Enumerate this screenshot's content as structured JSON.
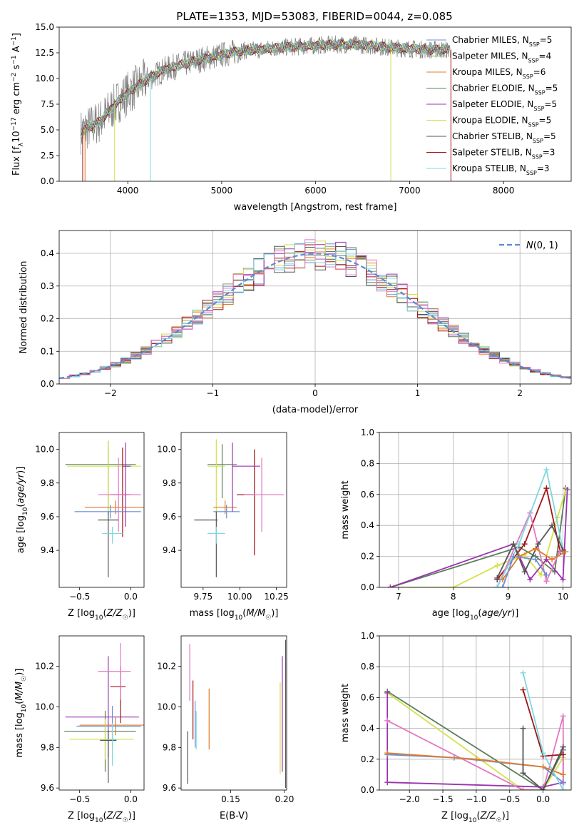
{
  "figure": {
    "title": "PLATE=1353, MJD=53083, FIBERID=0044, z=0.085"
  },
  "colors": {
    "CM": "#6b8fd6",
    "SM": "#8a9a5b",
    "KM": "#e07b2a",
    "CE": "#5a7f5a",
    "SE": "#9b33b0",
    "KE": "#d4e04a",
    "CS": "#555555",
    "SS": "#a31515",
    "KS": "#7dd8dd",
    "pink": "#e377c2",
    "data": "#808080",
    "normal": "#5b8ad6"
  },
  "chart_data": [
    {
      "id": "spectrum",
      "type": "line",
      "xlabel": "wavelength [Angstrom, rest frame]",
      "ylabel": "Flux [f_λ10^-17 erg cm^-2 s^-1 A^-1]",
      "xlim": [
        3270,
        8720
      ],
      "ylim": [
        0,
        15
      ],
      "xticks": [
        "4000",
        "5000",
        "6000",
        "7000",
        "8000"
      ],
      "yticks": [
        "0.0",
        "2.5",
        "5.0",
        "7.5",
        "10.0",
        "12.5",
        "15.0"
      ],
      "model_curve": {
        "x": [
          3500,
          3600,
          3700,
          3800,
          3900,
          4000,
          4200,
          4400,
          4600,
          4800,
          5000,
          5200,
          5400,
          5600,
          5800,
          6000,
          6200,
          6400,
          6600,
          6800,
          7000,
          7200,
          7400
        ],
        "y": [
          4.8,
          5.3,
          5.8,
          6.8,
          7.8,
          8.6,
          9.9,
          10.9,
          11.4,
          11.9,
          12.3,
          12.7,
          12.8,
          13.0,
          13.1,
          13.2,
          13.3,
          13.3,
          13.2,
          13.0,
          12.9,
          12.8,
          12.8
        ]
      },
      "legend": [
        {
          "name": "Chabrier MILES, N_SSP=5",
          "color": "CM"
        },
        {
          "name": "Salpeter MILES, N_SSP=4",
          "color": "SM"
        },
        {
          "name": "Kroupa MILES, N_SSP=6",
          "color": "KM"
        },
        {
          "name": "Chabrier ELODIE, N_SSP=5",
          "color": "CE"
        },
        {
          "name": "Salpeter ELODIE, N_SSP=5",
          "color": "SE"
        },
        {
          "name": "Kroupa ELODIE, N_SSP=5",
          "color": "KE"
        },
        {
          "name": "Chabrier STELIB, N_SSP=5",
          "color": "CS"
        },
        {
          "name": "Salpeter STELIB, N_SSP=3",
          "color": "SS"
        },
        {
          "name": "Kroupa STELIB, N_SSP=3",
          "color": "KS"
        }
      ],
      "legend_placement": "right"
    },
    {
      "id": "residuals",
      "type": "histogram",
      "xlabel": "(data-model)/error",
      "ylabel": "Normed distribution",
      "xlim": [
        -2.5,
        2.5
      ],
      "ylim": [
        0,
        0.47
      ],
      "xticks": [
        "−2",
        "−1",
        "0",
        "1",
        "2"
      ],
      "yticks": [
        "0.0",
        "0.1",
        "0.2",
        "0.3",
        "0.4"
      ],
      "grid": true,
      "bin_edges_start": -2.5,
      "bin_width": 0.1,
      "legend": [
        {
          "name": "N(0,1)",
          "color": "normal"
        }
      ],
      "legend_placement": "top-right"
    },
    {
      "id": "age_vs_Z",
      "type": "errorbar",
      "xlabel": "Z [log10(Z/Z☉)]",
      "ylabel": "age  [log10(age/yr)]",
      "xlim": [
        -0.7,
        0.13
      ],
      "ylim": [
        9.18,
        10.1
      ],
      "xticks": [
        "−0.5",
        "0.0"
      ],
      "yticks": [
        "9.4",
        "9.6",
        "9.8",
        "10.0"
      ],
      "points": [
        {
          "x": -0.22,
          "y": 9.91,
          "ex": [
            0.42,
            0.27
          ],
          "ey": [
            0.3,
            0.14
          ],
          "color": "CE"
        },
        {
          "x": -0.22,
          "y": 9.9,
          "ex": [
            0.4,
            0.32
          ],
          "ey": [
            0.28,
            0.15
          ],
          "color": "KE"
        },
        {
          "x": -0.08,
          "y": 9.73,
          "ex": [
            0.12,
            0.08
          ],
          "ey": [
            0.25,
            0.28
          ],
          "color": "SS"
        },
        {
          "x": -0.12,
          "y": 9.73,
          "ex": [
            0.2,
            0.22
          ],
          "ey": [
            0.22,
            0.22
          ],
          "color": "pink"
        },
        {
          "x": -0.15,
          "y": 9.655,
          "ex": [
            0.3,
            0.28
          ],
          "ey": [
            0.04,
            0.04
          ],
          "color": "KM"
        },
        {
          "x": -0.2,
          "y": 9.63,
          "ex": [
            0.35,
            0.3
          ],
          "ey": [
            0.04,
            0.04
          ],
          "color": "CM"
        },
        {
          "x": -0.22,
          "y": 9.58,
          "ex": [
            0.1,
            0.1
          ],
          "ey": [
            0.34,
            0.05
          ],
          "color": "CS"
        },
        {
          "x": -0.18,
          "y": 9.5,
          "ex": [
            0.1,
            0.1
          ],
          "ey": [
            0.06,
            0.04
          ],
          "color": "KS"
        },
        {
          "x": -0.05,
          "y": 9.9,
          "ex": [
            0.03,
            0.05
          ],
          "ey": [
            0.36,
            0.14
          ],
          "color": "SE"
        }
      ]
    },
    {
      "id": "age_vs_mass",
      "type": "errorbar",
      "xlabel": "mass [log10(M/M☉)]",
      "ylabel": "",
      "xlim": [
        9.6,
        10.32
      ],
      "ylim": [
        9.18,
        10.1
      ],
      "xticks": [
        "9.75",
        "10.00",
        "10.25"
      ],
      "yticks": [
        "9.4",
        "9.6",
        "9.8",
        "10.0"
      ],
      "points": [
        {
          "x": 9.88,
          "y": 9.91,
          "ex": [
            0.1,
            0.1
          ],
          "ey": [
            0.2,
            0.12
          ],
          "color": "CE"
        },
        {
          "x": 9.84,
          "y": 9.9,
          "ex": [
            0.06,
            0.06
          ],
          "ey": [
            0.3,
            0.16
          ],
          "color": "KE"
        },
        {
          "x": 10.1,
          "y": 9.73,
          "ex": [
            0.12,
            0.0
          ],
          "ey": [
            0.36,
            0.27
          ],
          "color": "SS"
        },
        {
          "x": 10.15,
          "y": 9.73,
          "ex": [
            0.12,
            0.15
          ],
          "ey": [
            0.22,
            0.22
          ],
          "color": "pink"
        },
        {
          "x": 9.9,
          "y": 9.655,
          "ex": [
            0.08,
            0.08
          ],
          "ey": [
            0.04,
            0.04
          ],
          "color": "KM"
        },
        {
          "x": 9.91,
          "y": 9.63,
          "ex": [
            0.09,
            0.09
          ],
          "ey": [
            0.04,
            0.04
          ],
          "color": "CM"
        },
        {
          "x": 9.84,
          "y": 9.58,
          "ex": [
            0.15,
            0.01
          ],
          "ey": [
            0.34,
            0.05
          ],
          "color": "CS"
        },
        {
          "x": 9.84,
          "y": 9.5,
          "ex": [
            0.06,
            0.06
          ],
          "ey": [
            0.06,
            0.04
          ],
          "color": "KS"
        },
        {
          "x": 9.95,
          "y": 9.9,
          "ex": [
            0.0,
            0.19
          ],
          "ey": [
            0.27,
            0.14
          ],
          "color": "SE"
        }
      ]
    },
    {
      "id": "massweight_vs_age",
      "type": "line",
      "xlabel": "age  [log10(age/yr)]",
      "ylabel": "mass weight",
      "xlim": [
        6.65,
        10.15
      ],
      "ylim": [
        0,
        1
      ],
      "xticks": [
        "7",
        "8",
        "9",
        "10"
      ],
      "yticks": [
        "0.0",
        "0.2",
        "0.4",
        "0.6",
        "0.8",
        "1.0"
      ],
      "grid": true,
      "series": [
        {
          "color": "CE",
          "x": [
            6.85,
            9.2,
            9.5,
            9.85,
            10.05
          ],
          "y": [
            0.0,
            0.26,
            0.2,
            0.1,
            0.64
          ]
        },
        {
          "color": "KE",
          "x": [
            6.9,
            8.0,
            8.8,
            9.3,
            9.6,
            9.9,
            10.05
          ],
          "y": [
            0.0,
            0.0,
            0.14,
            0.21,
            0.08,
            0.45,
            0.63
          ]
        },
        {
          "color": "SE",
          "x": [
            6.85,
            9.1,
            9.4,
            9.7,
            10.0,
            10.08
          ],
          "y": [
            0.0,
            0.28,
            0.05,
            0.18,
            0.05,
            0.63
          ]
        },
        {
          "color": "SS",
          "x": [
            8.8,
            9.3,
            9.7,
            9.95
          ],
          "y": [
            0.05,
            0.28,
            0.64,
            0.23
          ]
        },
        {
          "color": "pink",
          "x": [
            8.8,
            9.4,
            9.7,
            9.95
          ],
          "y": [
            0.0,
            0.48,
            0.04,
            0.24
          ]
        },
        {
          "color": "KS",
          "x": [
            8.8,
            9.2,
            9.7,
            10.0
          ],
          "y": [
            0.0,
            0.28,
            0.76,
            0.24
          ]
        },
        {
          "color": "CS",
          "x": [
            8.8,
            9.1,
            9.3,
            9.55,
            9.8,
            10.0
          ],
          "y": [
            0.06,
            0.28,
            0.1,
            0.28,
            0.4,
            0.24
          ]
        },
        {
          "color": "KM",
          "x": [
            8.9,
            9.2,
            9.5,
            9.8,
            10.05
          ],
          "y": [
            0.05,
            0.2,
            0.25,
            0.18,
            0.23
          ]
        },
        {
          "color": "CM",
          "x": [
            8.9,
            9.1,
            9.5,
            9.7
          ],
          "y": [
            0.0,
            0.2,
            0.18,
            0.08
          ]
        }
      ]
    },
    {
      "id": "mass_vs_Z",
      "type": "errorbar",
      "xlabel": "Z [log10(Z/Z☉)]",
      "ylabel": "mass [log10(M/M☉)]",
      "xlim": [
        -0.7,
        0.13
      ],
      "ylim": [
        9.59,
        10.35
      ],
      "xticks": [
        "−0.5",
        "0.0"
      ],
      "yticks": [
        "9.6",
        "9.8",
        "10.0",
        "10.2"
      ],
      "points": [
        {
          "x": -0.22,
          "y": 9.95,
          "ex": [
            0.42,
            0.3
          ],
          "ey": [
            0.2,
            0.3
          ],
          "color": "SE"
        },
        {
          "x": -0.15,
          "y": 9.91,
          "ex": [
            0.35,
            0.28
          ],
          "ey": [
            0.05,
            0.04
          ],
          "color": "KM"
        },
        {
          "x": -0.18,
          "y": 9.905,
          "ex": [
            0.35,
            0.28
          ],
          "ey": [
            0.1,
            0.1
          ],
          "color": "CM"
        },
        {
          "x": -0.25,
          "y": 9.88,
          "ex": [
            0.4,
            0.3
          ],
          "ey": [
            0.2,
            0.1
          ],
          "color": "CE"
        },
        {
          "x": -0.25,
          "y": 9.84,
          "ex": [
            0.35,
            0.28
          ],
          "ey": [
            0.1,
            0.1
          ],
          "color": "KE"
        },
        {
          "x": -0.22,
          "y": 9.835,
          "ex": [
            0.08,
            0.08
          ],
          "ey": [
            0.21,
            0.05
          ],
          "color": "CS"
        },
        {
          "x": -0.1,
          "y": 10.1,
          "ex": [
            0.1,
            0.05
          ],
          "ey": [
            0.18,
            0.1
          ],
          "color": "SS"
        },
        {
          "x": -0.1,
          "y": 10.175,
          "ex": [
            0.22,
            0.1
          ],
          "ey": [
            0.14,
            0.14
          ],
          "color": "pink"
        },
        {
          "x": -0.18,
          "y": 9.84,
          "ex": [
            0.05,
            0.05
          ],
          "ey": [
            0.13,
            0.08
          ],
          "color": "KS"
        }
      ]
    },
    {
      "id": "mass_vs_EBV",
      "type": "errorbar",
      "xlabel": "E(B-V)",
      "ylabel": "",
      "xlim": [
        0.104,
        0.202
      ],
      "ylim": [
        9.59,
        10.35
      ],
      "xticks": [
        "0.15",
        "0.20"
      ],
      "yticks": [
        "9.6",
        "9.8",
        "10.0",
        "10.2"
      ],
      "bars": [
        {
          "x": 0.11,
          "lo": 9.62,
          "hi": 9.88,
          "color": "CS"
        },
        {
          "x": 0.112,
          "lo": 10.03,
          "hi": 10.31,
          "color": "pink"
        },
        {
          "x": 0.115,
          "lo": 9.84,
          "hi": 10.13,
          "color": "SS"
        },
        {
          "x": 0.117,
          "lo": 9.8,
          "hi": 10.03,
          "color": "CM"
        },
        {
          "x": 0.118,
          "lo": 9.79,
          "hi": 9.98,
          "color": "KS"
        },
        {
          "x": 0.13,
          "lo": 9.79,
          "hi": 10.09,
          "color": "KM"
        },
        {
          "x": 0.196,
          "lo": 9.67,
          "hi": 10.12,
          "color": "KE"
        },
        {
          "x": 0.198,
          "lo": 9.68,
          "hi": 10.25,
          "color": "SE"
        },
        {
          "x": 0.201,
          "lo": 9.6,
          "hi": 10.33,
          "color": "CS"
        }
      ]
    },
    {
      "id": "massweight_vs_Z",
      "type": "line",
      "xlabel": "Z [log10(Z/Z☉)]",
      "ylabel": "mass weight",
      "xlim": [
        -2.45,
        0.42
      ],
      "ylim": [
        0,
        1
      ],
      "xticks": [
        "−2.0",
        "−1.5",
        "−1.0",
        "−0.5",
        "0.0"
      ],
      "yticks": [
        "0.0",
        "0.2",
        "0.4",
        "0.6",
        "0.8",
        "1.0"
      ],
      "grid": true,
      "series": [
        {
          "color": "CE",
          "x": [
            -2.33,
            0.0,
            0.3
          ],
          "y": [
            0.64,
            0.0,
            0.26
          ]
        },
        {
          "color": "KE",
          "x": [
            -2.33,
            -0.3,
            0.0,
            0.3
          ],
          "y": [
            0.63,
            0.0,
            0.0,
            0.21
          ]
        },
        {
          "color": "SE",
          "x": [
            -2.33,
            -2.33,
            0.0,
            0.3,
            0.3
          ],
          "y": [
            0.63,
            0.05,
            0.02,
            0.05,
            0.28
          ]
        },
        {
          "color": "pink",
          "x": [
            -2.33,
            -0.3,
            0.0,
            0.3,
            0.3
          ],
          "y": [
            0.45,
            0.0,
            0.0,
            0.48,
            0.04
          ]
        },
        {
          "color": "CM",
          "x": [
            -2.33,
            -1.33,
            0.0,
            0.3
          ],
          "y": [
            0.23,
            0.21,
            0.15,
            0.05
          ]
        },
        {
          "color": "KM",
          "x": [
            -2.33,
            -1.0,
            0.0,
            0.3
          ],
          "y": [
            0.24,
            0.2,
            0.15,
            0.1
          ]
        },
        {
          "color": "SS",
          "x": [
            -0.3,
            0.0,
            0.3
          ],
          "y": [
            0.65,
            0.22,
            0.23
          ]
        },
        {
          "color": "KS",
          "x": [
            -0.3,
            0.0,
            0.3
          ],
          "y": [
            0.76,
            0.24,
            0.0
          ]
        },
        {
          "color": "CS",
          "x": [
            -0.3,
            -0.3,
            0.0,
            0.3
          ],
          "y": [
            0.4,
            0.11,
            0.0,
            0.28
          ]
        }
      ]
    }
  ]
}
